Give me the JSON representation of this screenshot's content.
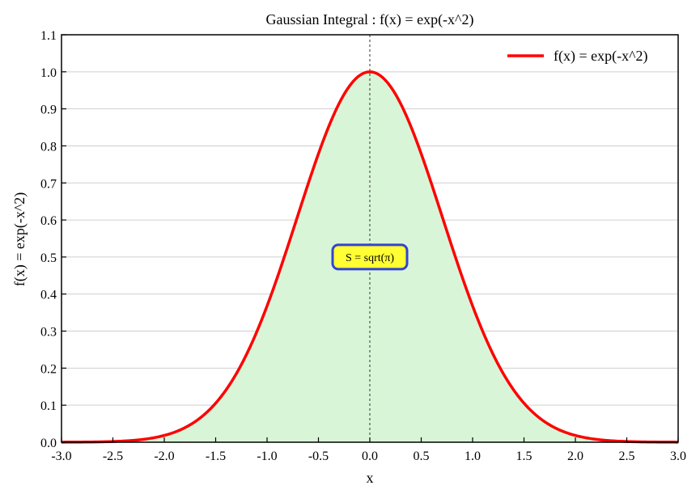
{
  "chart_data": {
    "type": "line",
    "title": "Gaussian Integral : f(x) = exp(-x^2)",
    "xlabel": "x",
    "ylabel": "f(x) = exp(-x^2)",
    "xlim": [
      -3.0,
      3.0
    ],
    "ylim": [
      0.0,
      1.1
    ],
    "xticks": [
      "-3.0",
      "-2.5",
      "-2.0",
      "-1.5",
      "-1.0",
      "-0.5",
      "0.0",
      "0.5",
      "1.0",
      "1.5",
      "2.0",
      "2.5",
      "3.0"
    ],
    "yticks": [
      "0.0",
      "0.1",
      "0.2",
      "0.3",
      "0.4",
      "0.5",
      "0.6",
      "0.7",
      "0.8",
      "0.9",
      "1.0",
      "1.1"
    ],
    "grid": "horizontal",
    "legend": "top-right",
    "series": [
      {
        "name": "f(x) = exp(-x^2)",
        "color": "#ff0000",
        "fill": "#d8f5d8",
        "x": [
          -3.0,
          -2.75,
          -2.5,
          -2.25,
          -2.0,
          -1.75,
          -1.5,
          -1.25,
          -1.0,
          -0.75,
          -0.5,
          -0.25,
          0.0,
          0.25,
          0.5,
          0.75,
          1.0,
          1.25,
          1.5,
          1.75,
          2.0,
          2.25,
          2.5,
          2.75,
          3.0
        ],
        "y": [
          0.0001,
          0.0005,
          0.0019,
          0.0063,
          0.0183,
          0.0468,
          0.1054,
          0.2096,
          0.3679,
          0.5698,
          0.7788,
          0.9394,
          1.0,
          0.9394,
          0.7788,
          0.5698,
          0.3679,
          0.2096,
          0.1054,
          0.0468,
          0.0183,
          0.0063,
          0.0019,
          0.0005,
          0.0001
        ]
      }
    ],
    "vline": {
      "x": 0.0,
      "style": "dashed"
    },
    "annotation": {
      "text": "S = sqrt(π)",
      "x": 0.0,
      "y": 0.5,
      "box_fill": "#ffff33",
      "box_edge": "#3344cc"
    }
  }
}
